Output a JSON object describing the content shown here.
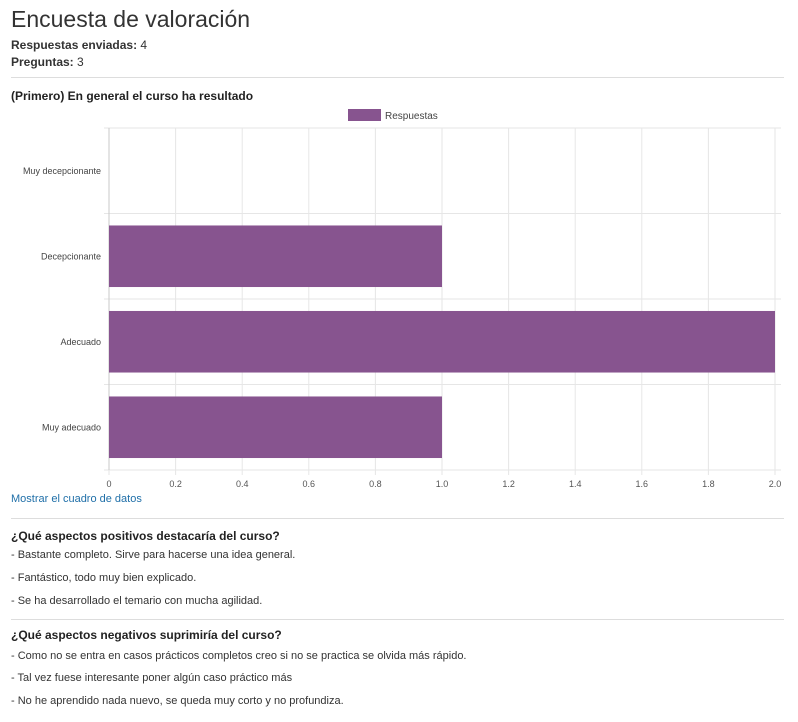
{
  "page": {
    "title": "Encuesta de valoración",
    "responses_label": "Respuestas enviadas:",
    "responses_value": "4",
    "questions_label": "Preguntas:",
    "questions_value": "3"
  },
  "q1": {
    "title": "(Primero) En general el curso ha resultado",
    "show_data_link": "Mostrar el cuadro de datos"
  },
  "chart_data": {
    "type": "bar",
    "orientation": "horizontal",
    "categories": [
      "Muy decepcionante",
      "Decepcionante",
      "Adecuado",
      "Muy adecuado"
    ],
    "series": [
      {
        "name": "Respuestas",
        "values": [
          0,
          1,
          2,
          1
        ],
        "color": "#87548f"
      }
    ],
    "xlim": [
      0,
      2
    ],
    "x_ticks": [
      "0",
      "0.2",
      "0.4",
      "0.6",
      "0.8",
      "1.0",
      "1.2",
      "1.4",
      "1.6",
      "1.8",
      "2.0"
    ],
    "grid": true,
    "legend_position": "top-center"
  },
  "q2": {
    "title": "¿Qué aspectos positivos destacaría del curso?",
    "answers": [
      "- Bastante completo. Sirve para hacerse una idea general.",
      "- Fantástico, todo muy bien explicado.",
      "- Se ha desarrollado el temario con mucha agilidad."
    ]
  },
  "q3": {
    "title": "¿Qué aspectos negativos suprimiría del curso?",
    "answers": [
      "- Como no se entra en casos prácticos completos creo si no se practica se olvida más rápido.",
      "- Tal vez fuese interesante poner algún caso práctico más",
      "- No he aprendido nada nuevo, se queda muy corto y no profundiza."
    ]
  }
}
